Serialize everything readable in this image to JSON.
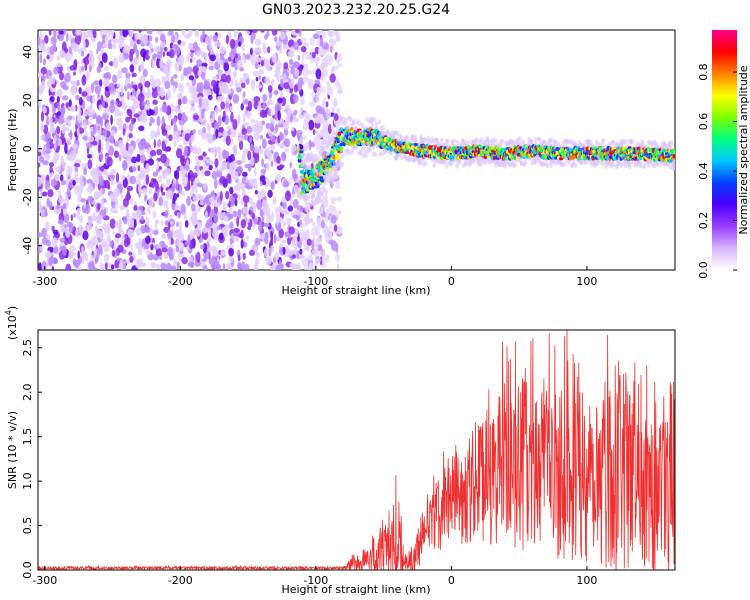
{
  "chart_data": [
    {
      "type": "heatmap",
      "title": "GN03.2023.232.20.25.G24",
      "xlabel": "Height of straight line (km)",
      "ylabel": "Frequency (Hz)",
      "xlim": [
        -305,
        165
      ],
      "ylim": [
        -50,
        49
      ],
      "xticks": [
        -300,
        -200,
        -100,
        0,
        100
      ],
      "yticks": [
        -40,
        -20,
        0,
        20,
        40
      ],
      "colorbar": {
        "label": "Normalized spectral amplitude",
        "range": [
          0,
          0.97
        ],
        "ticks": [
          "0.0",
          "0.2",
          "0.4",
          "0.6",
          "0.8"
        ],
        "colormap": [
          "#ffffff",
          "#d7b3ff",
          "#9a3cff",
          "#4b00ff",
          "#0040ff",
          "#00c8ff",
          "#00ff7f",
          "#7fff00",
          "#ffff00",
          "#ff8000",
          "#ff0000",
          "#ff0090"
        ]
      },
      "features": {
        "noise_region_km": [
          -305,
          -82
        ],
        "signal_track": [
          {
            "x": -110,
            "y": -14
          },
          {
            "x": -100,
            "y": -12
          },
          {
            "x": -90,
            "y": -6
          },
          {
            "x": -80,
            "y": 5
          },
          {
            "x": -60,
            "y": 5
          },
          {
            "x": -40,
            "y": 1
          },
          {
            "x": -20,
            "y": -1
          },
          {
            "x": 0,
            "y": -2
          },
          {
            "x": 20,
            "y": -1
          },
          {
            "x": 40,
            "y": -2
          },
          {
            "x": 60,
            "y": -1
          },
          {
            "x": 80,
            "y": -2
          },
          {
            "x": 100,
            "y": -2
          },
          {
            "x": 120,
            "y": -2
          },
          {
            "x": 140,
            "y": -2
          },
          {
            "x": 165,
            "y": -3
          }
        ]
      }
    },
    {
      "type": "line",
      "title": "",
      "xlabel": "Height of straight line (km)",
      "ylabel": "SNR (10 * v/v)",
      "yscale_note": "(x10",
      "yscale_exp": "4",
      "y_unit_multiplier": 10000,
      "xlim": [
        -305,
        165
      ],
      "ylim": [
        0,
        2.7
      ],
      "xticks": [
        -300,
        -200,
        -100,
        0,
        100
      ],
      "yticks": [
        "0.0",
        "0.5",
        "1.0",
        "1.5",
        "2.0",
        "2.5"
      ],
      "series": [
        {
          "color": "#f03030",
          "envelope": [
            {
              "x": -305,
              "base": 0.02,
              "amp": 0.02
            },
            {
              "x": -80,
              "base": 0.02,
              "amp": 0.02
            },
            {
              "x": -60,
              "base": 0.12,
              "amp": 0.25
            },
            {
              "x": -45,
              "base": 0.25,
              "amp": 0.55
            },
            {
              "x": -40,
              "base": 0.35,
              "amp": 0.75
            },
            {
              "x": -35,
              "base": 0.08,
              "amp": 0.15
            },
            {
              "x": -28,
              "base": 0.05,
              "amp": 0.2
            },
            {
              "x": -20,
              "base": 0.4,
              "amp": 0.45
            },
            {
              "x": 0,
              "base": 0.75,
              "amp": 0.6
            },
            {
              "x": 20,
              "base": 0.9,
              "amp": 0.9
            },
            {
              "x": 40,
              "base": 1.1,
              "amp": 1.2
            },
            {
              "x": 80,
              "base": 1.05,
              "amp": 1.3
            },
            {
              "x": 120,
              "base": 1.0,
              "amp": 1.4
            },
            {
              "x": 165,
              "base": 0.95,
              "amp": 1.4
            }
          ]
        }
      ]
    }
  ]
}
